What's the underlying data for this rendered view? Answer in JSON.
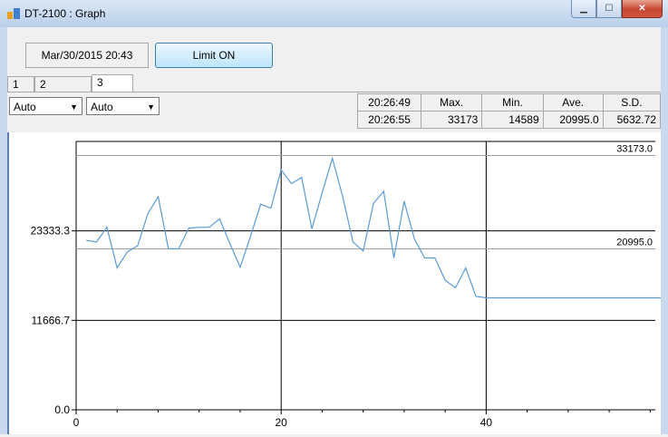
{
  "window": {
    "title": "DT-2100 : Graph",
    "accent": "#c7452f",
    "caption_buttons": [
      "minimize-icon",
      "maximize-icon",
      "close-icon"
    ]
  },
  "header": {
    "datetime": "Mar/30/2015 20:43",
    "limit_button": "Limit ON"
  },
  "tabs": [
    {
      "label": "1",
      "active": false
    },
    {
      "label": "2",
      "active": false
    },
    {
      "label": "3",
      "active": true
    }
  ],
  "controls": {
    "combo1": "Auto",
    "combo2": "Auto"
  },
  "stats": {
    "headers": [
      "20:26:49",
      "Max.",
      "Min.",
      "Ave.",
      "S.D."
    ],
    "values": [
      "20:26:55",
      "33173",
      "14589",
      "20995.0",
      "5632.72"
    ]
  },
  "chart_data": {
    "type": "line",
    "line_color": "#5b9bd5",
    "x": [
      1,
      2,
      3,
      4,
      5,
      6,
      7,
      8,
      9,
      10,
      11,
      12,
      13,
      14,
      15,
      16,
      17,
      18,
      19,
      20,
      21,
      22,
      23,
      24,
      25,
      26,
      27,
      28,
      29,
      30,
      31,
      32,
      33,
      34,
      35,
      36,
      37,
      38,
      39,
      40,
      58
    ],
    "values": [
      22100,
      21900,
      23800,
      18500,
      20600,
      21400,
      25600,
      27800,
      21000,
      21000,
      23700,
      23800,
      23800,
      24900,
      21700,
      18600,
      22600,
      26800,
      26300,
      31300,
      29500,
      30300,
      23600,
      28300,
      32800,
      27800,
      21900,
      20700,
      26900,
      28500,
      19800,
      27200,
      22300,
      19800,
      19800,
      16900,
      15900,
      18500,
      14800,
      14600,
      14600
    ],
    "reference_lines": {
      "max": {
        "value": 33173,
        "label": "33173.0"
      },
      "average": {
        "value": 20995,
        "label": "20995.0"
      }
    },
    "yticks": [
      {
        "value": 0,
        "label": "0.0"
      },
      {
        "value": 11666.7,
        "label": "11666.7"
      },
      {
        "value": 23333.3,
        "label": "23333.3"
      }
    ],
    "xticks": [
      {
        "value": 0,
        "label": "0"
      },
      {
        "value": 20,
        "label": "20"
      },
      {
        "value": 40,
        "label": "40"
      }
    ],
    "xlim": [
      0,
      56.5
    ],
    "ylim": [
      0,
      35000
    ],
    "grid": true
  }
}
